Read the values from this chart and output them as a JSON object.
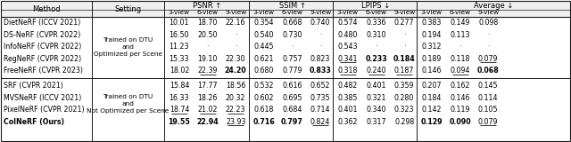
{
  "header_groups": [
    "PSNR ↑",
    "SSIM ↑",
    "LPIPS ↓",
    "Average ↓"
  ],
  "subheaders": [
    "3-view",
    "6-view",
    "9-view"
  ],
  "group1_setting": "Trained on DTU\nand\nOptimized per Scene",
  "group2_setting": "Trained on DTU\nand\nNot Optimized per Scene",
  "rows": [
    {
      "method": "DietNeRF (ICCV 2021)",
      "group": 1,
      "vals": [
        "10.01",
        "18.70",
        "22.16",
        "0.354",
        "0.668",
        "0.740",
        "0.574",
        "0.336",
        "0.277",
        "0.383",
        "0.149",
        "0.098"
      ],
      "bold": [
        0,
        0,
        0,
        0,
        0,
        0,
        0,
        0,
        0,
        0,
        0,
        0
      ],
      "underline": [
        0,
        0,
        0,
        0,
        0,
        0,
        0,
        0,
        0,
        0,
        0,
        0
      ],
      "is_ours": false
    },
    {
      "method": "DS-NeRF (CVPR 2022)",
      "group": 1,
      "vals": [
        "16.50",
        "20.50",
        "·",
        "0.540",
        "0.730",
        "·",
        "0.480",
        "0.310",
        "·",
        "0.194",
        "0.113",
        "·"
      ],
      "bold": [
        0,
        0,
        0,
        0,
        0,
        0,
        0,
        0,
        0,
        0,
        0,
        0
      ],
      "underline": [
        0,
        0,
        0,
        0,
        0,
        0,
        0,
        0,
        0,
        0,
        0,
        0
      ],
      "is_ours": false
    },
    {
      "method": "InfoNeRF (CVPR 2022)",
      "group": 1,
      "vals": [
        "11.23",
        "·",
        "·",
        "0.445",
        "·",
        "·",
        "0.543",
        "·",
        "·",
        "0.312",
        "·",
        "·"
      ],
      "bold": [
        0,
        0,
        0,
        0,
        0,
        0,
        0,
        0,
        0,
        0,
        0,
        0
      ],
      "underline": [
        0,
        0,
        0,
        0,
        0,
        0,
        0,
        0,
        0,
        0,
        0,
        0
      ],
      "is_ours": false
    },
    {
      "method": "RegNeRF (CVPR 2022)",
      "group": 1,
      "vals": [
        "15.33",
        "19.10",
        "22.30",
        "0.621",
        "0.757",
        "0.823",
        "0.341",
        "0.233",
        "0.184",
        "0.189",
        "0.118",
        "0.079"
      ],
      "bold": [
        0,
        0,
        0,
        0,
        0,
        0,
        0,
        1,
        1,
        0,
        0,
        0
      ],
      "underline": [
        0,
        0,
        0,
        0,
        0,
        0,
        1,
        0,
        0,
        0,
        0,
        1
      ],
      "is_ours": false
    },
    {
      "method": "FreeNeRF (CVPR 2023)",
      "group": 1,
      "vals": [
        "18.02",
        "22.39",
        "24.20",
        "0.680",
        "0.779",
        "0.833",
        "0.318",
        "0.240",
        "0.187",
        "0.146",
        "0.094",
        "0.068"
      ],
      "bold": [
        0,
        0,
        1,
        0,
        0,
        1,
        0,
        0,
        0,
        0,
        0,
        1
      ],
      "underline": [
        0,
        1,
        0,
        0,
        0,
        0,
        1,
        1,
        1,
        0,
        1,
        0
      ],
      "is_ours": false
    },
    {
      "method": "SRF (CVPR 2021)",
      "group": 2,
      "vals": [
        "15.84",
        "17.77",
        "18.56",
        "0.532",
        "0.616",
        "0.652",
        "0.482",
        "0.401",
        "0.359",
        "0.207",
        "0.162",
        "0.145"
      ],
      "bold": [
        0,
        0,
        0,
        0,
        0,
        0,
        0,
        0,
        0,
        0,
        0,
        0
      ],
      "underline": [
        0,
        0,
        0,
        0,
        0,
        0,
        0,
        0,
        0,
        0,
        0,
        0
      ],
      "is_ours": false
    },
    {
      "method": "MVSNeRF (ICCV 2021)",
      "group": 2,
      "vals": [
        "16.33",
        "18.26",
        "20.32",
        "0.602",
        "0.695",
        "0.735",
        "0.385",
        "0.321",
        "0.280",
        "0.184",
        "0.146",
        "0.114"
      ],
      "bold": [
        0,
        0,
        0,
        0,
        0,
        0,
        0,
        0,
        0,
        0,
        0,
        0
      ],
      "underline": [
        0,
        0,
        0,
        0,
        0,
        0,
        0,
        0,
        0,
        0,
        0,
        0
      ],
      "is_ours": false
    },
    {
      "method": "PixelNeRF (CVPR 2021)",
      "group": 2,
      "vals": [
        "18.74",
        "21.02",
        "22.23",
        "0.618",
        "0.684",
        "0.714",
        "0.401",
        "0.340",
        "0.323",
        "0.142",
        "0.119",
        "0.105"
      ],
      "bold": [
        0,
        0,
        0,
        0,
        0,
        0,
        0,
        0,
        0,
        0,
        0,
        0
      ],
      "underline": [
        1,
        1,
        1,
        0,
        0,
        0,
        0,
        0,
        0,
        0,
        0,
        0
      ],
      "is_ours": false
    },
    {
      "method": "ColNeRF (Ours)",
      "group": 2,
      "vals": [
        "19.55",
        "22.94",
        "23.93",
        "0.716",
        "0.797",
        "0.824",
        "0.362",
        "0.317",
        "0.298",
        "0.129",
        "0.090",
        "0.079"
      ],
      "bold": [
        1,
        1,
        0,
        1,
        1,
        0,
        0,
        0,
        0,
        1,
        1,
        0
      ],
      "underline": [
        0,
        0,
        1,
        0,
        0,
        1,
        0,
        0,
        0,
        0,
        0,
        1
      ],
      "is_ours": true
    }
  ]
}
